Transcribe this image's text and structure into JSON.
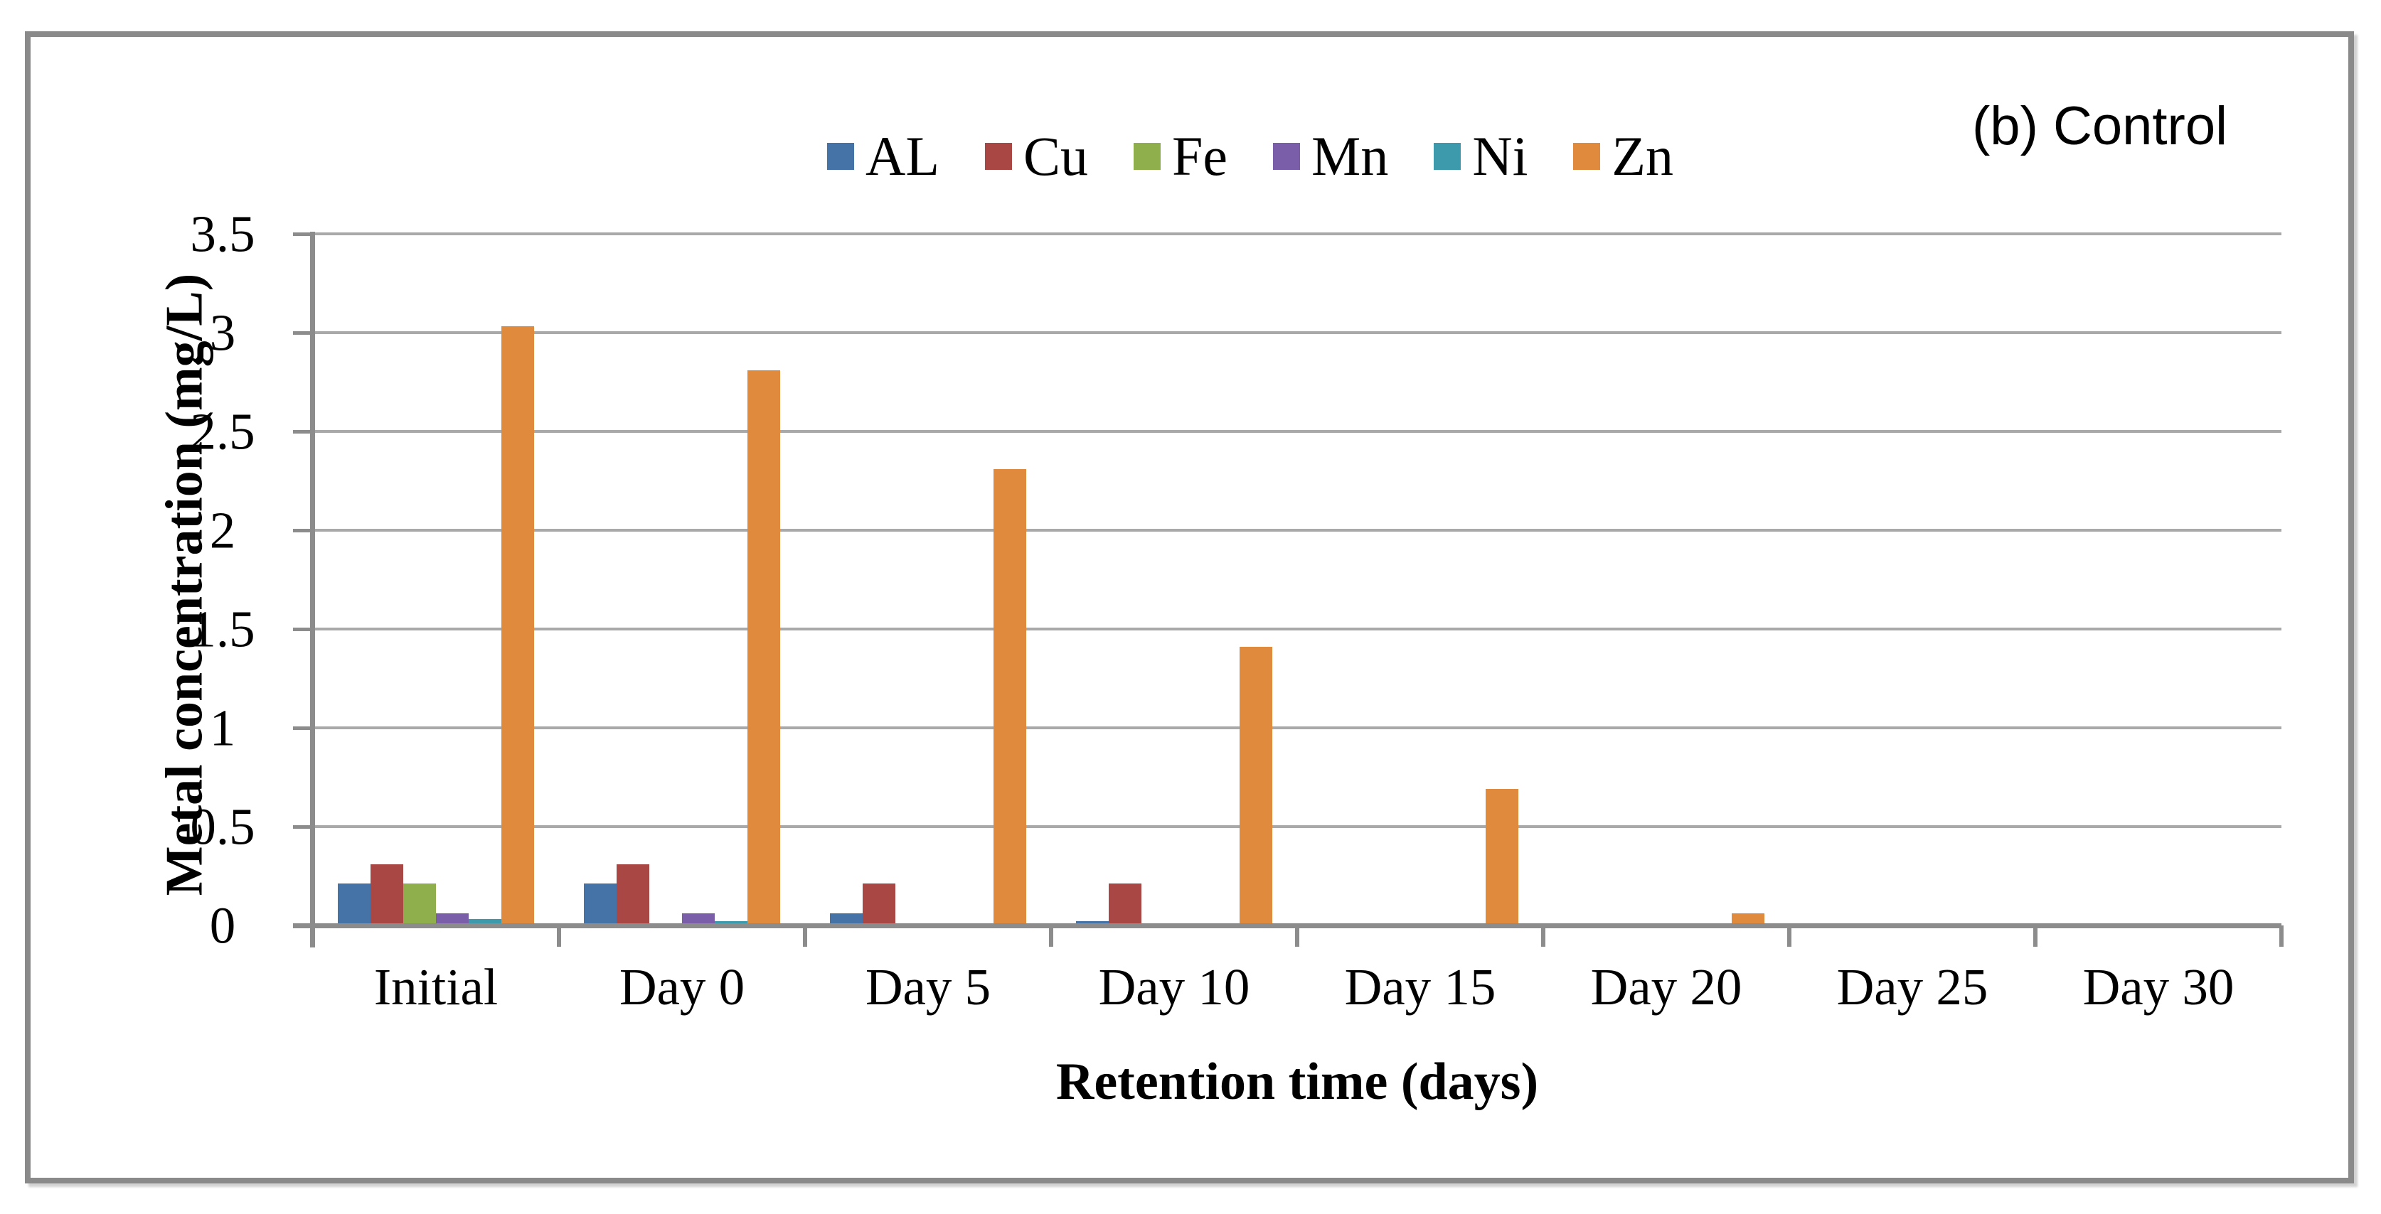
{
  "annotation": "(b) Control",
  "chart_data": {
    "type": "bar",
    "title": "",
    "xlabel": "Retention time (days)",
    "ylabel": "Metal concentration (mg/L)",
    "categories": [
      "Initial",
      "Day 0",
      "Day 5",
      "Day 10",
      "Day 15",
      "Day 20",
      "Day 25",
      "Day 30"
    ],
    "series": [
      {
        "name": "AL",
        "color": "#4572A7",
        "values": [
          0.2,
          0.2,
          0.05,
          0.01,
          0,
          0,
          0,
          0
        ]
      },
      {
        "name": "Cu",
        "color": "#A84743",
        "values": [
          0.3,
          0.3,
          0.2,
          0.2,
          0,
          0,
          0,
          0
        ]
      },
      {
        "name": "Fe",
        "color": "#8FAF4D",
        "values": [
          0.2,
          0,
          0,
          0,
          0,
          0,
          0,
          0
        ]
      },
      {
        "name": "Mn",
        "color": "#7A5EAA",
        "values": [
          0.05,
          0.05,
          0,
          0,
          0,
          0,
          0,
          0
        ]
      },
      {
        "name": "Ni",
        "color": "#3D9AAC",
        "values": [
          0.02,
          0.01,
          0,
          0,
          0,
          0,
          0,
          0
        ]
      },
      {
        "name": "Zn",
        "color": "#DF8A3C",
        "values": [
          3.02,
          2.8,
          2.3,
          1.4,
          0.68,
          0.05,
          0,
          0
        ]
      }
    ],
    "ylim": [
      0,
      3.5
    ],
    "ytick_labels": [
      "0",
      "0.5",
      "1",
      "1.5",
      "2",
      "2.5",
      "3",
      "3.5"
    ],
    "grid": true,
    "legend_position": "top-center",
    "axis_color": "#8c8c8c",
    "grid_color": "#a9a9a9"
  }
}
